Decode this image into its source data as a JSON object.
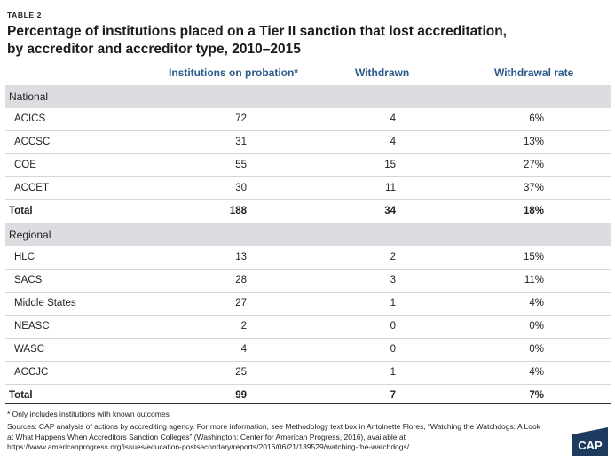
{
  "table_label": "TABLE 2",
  "title_line1": "Percentage of institutions placed on a Tier II sanction that lost accreditation,",
  "title_line2": "by accreditor and accreditor type, 2010–2015",
  "columns": [
    "Institutions on probation*",
    "Withdrawn",
    "Withdrawal rate"
  ],
  "sections": [
    {
      "name": "National",
      "rows": [
        [
          "ACICS",
          "72",
          "4",
          "6%"
        ],
        [
          "ACCSC",
          "31",
          "4",
          "13%"
        ],
        [
          "COE",
          "55",
          "15",
          "27%"
        ],
        [
          "ACCET",
          "30",
          "11",
          "37%"
        ]
      ],
      "total": [
        "Total",
        "188",
        "34",
        "18%"
      ]
    },
    {
      "name": "Regional",
      "rows": [
        [
          "HLC",
          "13",
          "2",
          "15%"
        ],
        [
          "SACS",
          "28",
          "3",
          "11%"
        ],
        [
          "Middle States",
          "27",
          "1",
          "4%"
        ],
        [
          "NEASC",
          "2",
          "0",
          "0%"
        ],
        [
          "WASC",
          "4",
          "0",
          "0%"
        ],
        [
          "ACCJC",
          "25",
          "1",
          "4%"
        ]
      ],
      "total": [
        "Total",
        "99",
        "7",
        "7%"
      ]
    }
  ],
  "footnote": "* Only includes institutions with known outcomes",
  "sources": "Sources: CAP analysis of actions by accrediting agency. For more information, see Methodology text box in Antoinette Flores, “Watching the Watchdogs: A Look at What Happens When Accreditors Sanction Colleges” (Washington: Center for American Progress, 2016), available at https://www.americanprogress.org/issues/education-postsecondary/reports/2016/06/21/139529/watching-the-watchdogs/.",
  "logo_text": "CAP",
  "colors": {
    "header_text": "#2a5a8a",
    "section_band": "#dcdde1",
    "logo_bg": "#1f3a5f"
  }
}
